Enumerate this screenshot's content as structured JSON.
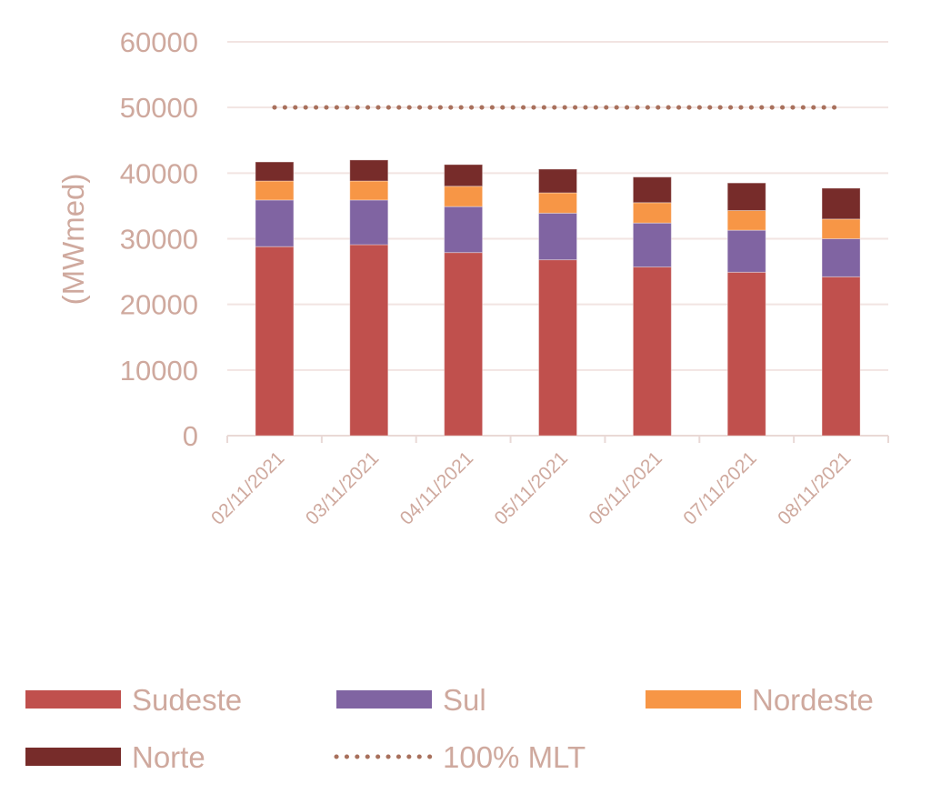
{
  "chart_data": {
    "type": "bar",
    "stacked": true,
    "title": "",
    "xlabel": "",
    "ylabel": "(MWmed)",
    "ylim": [
      0,
      60000
    ],
    "yticks": [
      "0",
      "10000",
      "20000",
      "30000",
      "40000",
      "50000",
      "60000"
    ],
    "grid": true,
    "legend_position": "bottom",
    "categories": [
      "02/11/2021",
      "03/11/2021",
      "04/11/2021",
      "05/11/2021",
      "06/11/2021",
      "07/11/2021",
      "08/11/2021"
    ],
    "series": [
      {
        "name": "Sudeste",
        "color": "#C0504D",
        "values": [
          28800,
          29100,
          27900,
          26800,
          25700,
          24900,
          24200
        ]
      },
      {
        "name": "Sul",
        "color": "#8064A2",
        "values": [
          7100,
          6800,
          7000,
          7100,
          6700,
          6400,
          5800
        ]
      },
      {
        "name": "Nordeste",
        "color": "#F79646",
        "values": [
          2900,
          2900,
          3100,
          3100,
          3100,
          3000,
          3000
        ]
      },
      {
        "name": "Norte",
        "color": "#772C2A",
        "values": [
          2900,
          3200,
          3300,
          3600,
          3900,
          4200,
          4700
        ]
      }
    ],
    "lines": [
      {
        "name": "100% MLT",
        "color": "#A8705C",
        "style": "dotted",
        "values": [
          50000,
          50000,
          50000,
          50000,
          50000,
          50000,
          50000
        ]
      }
    ]
  }
}
